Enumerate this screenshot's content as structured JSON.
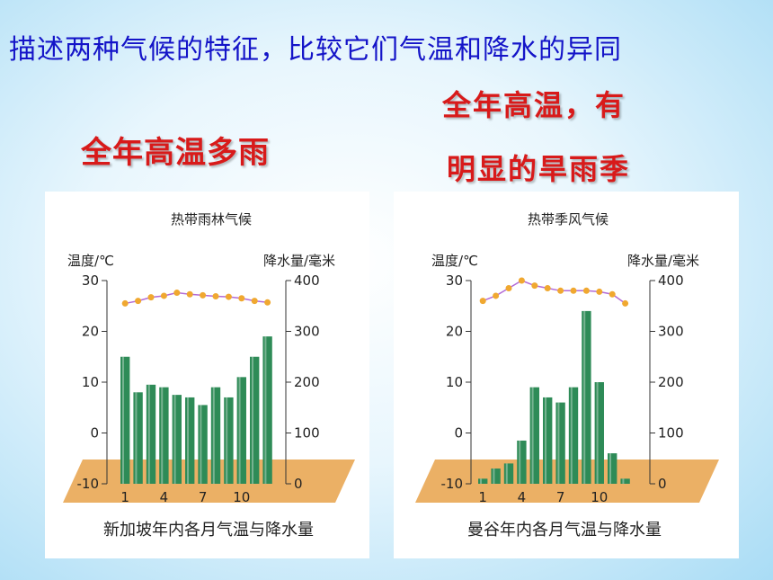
{
  "slide": {
    "title": "描述两种气候的特征，比较它们气温和降水的异同",
    "label_left": "全年高温多雨",
    "label_right_line1": "全年高温，有",
    "label_right_line2": "明显的旱雨季"
  },
  "colors": {
    "title": "#1414c8",
    "label": "#d81a1a",
    "bar": "#2e8b57",
    "temp_line": "#b36bd6",
    "temp_point": "#f0a830",
    "floor": "#e8a24a"
  },
  "chart_data": [
    {
      "type": "bar+line",
      "title": "热带雨林气候",
      "caption": "新加坡年内各月气温与降水量",
      "left_axis_label": "温度/℃",
      "right_axis_label": "降水量/毫米",
      "left_ticks": [
        "30",
        "20",
        "10",
        "0",
        "-10"
      ],
      "right_ticks": [
        "400",
        "300",
        "200",
        "100",
        "0"
      ],
      "x_ticks": [
        "1",
        "4",
        "7",
        "10"
      ],
      "temp_range": [
        -10,
        30
      ],
      "precip_range": [
        0,
        400
      ],
      "months": [
        1,
        2,
        3,
        4,
        5,
        6,
        7,
        8,
        9,
        10,
        11,
        12
      ],
      "temperature": [
        25.5,
        26.0,
        26.7,
        27.0,
        27.6,
        27.3,
        27.1,
        26.9,
        26.8,
        26.5,
        26.0,
        25.7
      ],
      "precipitation": [
        250,
        180,
        195,
        190,
        175,
        170,
        155,
        190,
        170,
        210,
        250,
        290
      ]
    },
    {
      "type": "bar+line",
      "title": "热带季风气候",
      "caption": "曼谷年内各月气温与降水量",
      "left_axis_label": "温度/℃",
      "right_axis_label": "降水量/毫米",
      "left_ticks": [
        "30",
        "20",
        "10",
        "0",
        "-10"
      ],
      "right_ticks": [
        "400",
        "300",
        "200",
        "100",
        "0"
      ],
      "x_ticks": [
        "1",
        "4",
        "7",
        "10"
      ],
      "temp_range": [
        -10,
        30
      ],
      "precip_range": [
        0,
        400
      ],
      "months": [
        1,
        2,
        3,
        4,
        5,
        6,
        7,
        8,
        9,
        10,
        11,
        12
      ],
      "temperature": [
        26.0,
        27.0,
        28.5,
        30.0,
        29.0,
        28.5,
        28.0,
        28.0,
        28.0,
        27.8,
        27.3,
        25.5
      ],
      "precipitation": [
        10,
        30,
        40,
        85,
        190,
        170,
        160,
        190,
        340,
        200,
        60,
        10
      ]
    }
  ]
}
